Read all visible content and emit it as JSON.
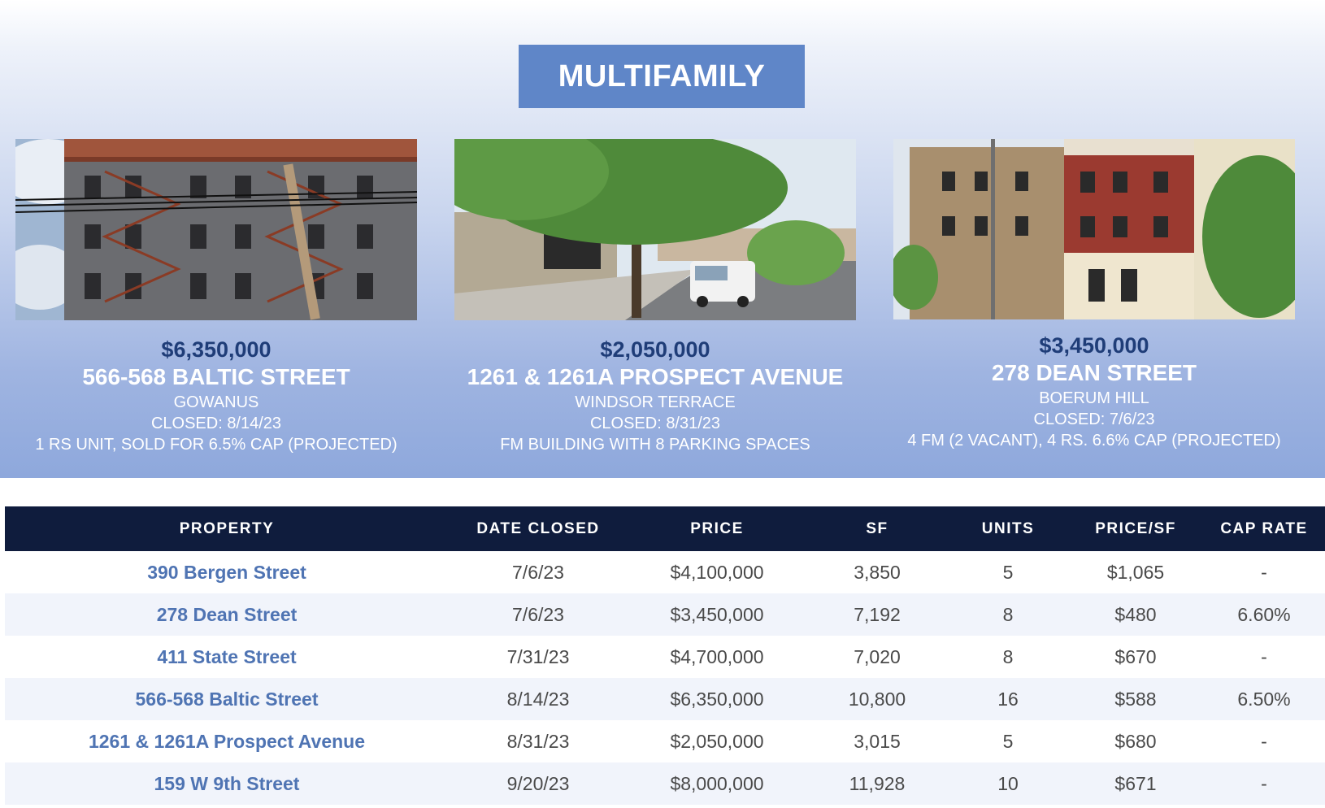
{
  "banner": "MULTIFAMILY",
  "cards": [
    {
      "price": "$6,350,000",
      "address": "566-568 BALTIC STREET",
      "neighborhood": "GOWANUS",
      "closed": "CLOSED: 8/14/23",
      "note": "1 RS UNIT, SOLD FOR 6.5% CAP (PROJECTED)"
    },
    {
      "price": "$2,050,000",
      "address": "1261 & 1261A PROSPECT AVENUE",
      "neighborhood": "WINDSOR TERRACE",
      "closed": "CLOSED: 8/31/23",
      "note": "FM BUILDING WITH 8 PARKING SPACES"
    },
    {
      "price": "$3,450,000",
      "address": "278 DEAN STREET",
      "neighborhood": "BOERUM HILL",
      "closed": "CLOSED: 7/6/23",
      "note": "4 FM (2 VACANT), 4 RS. 6.6% CAP (PROJECTED)"
    }
  ],
  "table": {
    "headers": [
      "PROPERTY",
      "DATE CLOSED",
      "PRICE",
      "SF",
      "UNITS",
      "PRICE/SF",
      "CAP RATE"
    ],
    "rows": [
      [
        "390 Bergen Street",
        "7/6/23",
        "$4,100,000",
        "3,850",
        "5",
        "$1,065",
        "-"
      ],
      [
        "278 Dean Street",
        "7/6/23",
        "$3,450,000",
        "7,192",
        "8",
        "$480",
        "6.60%"
      ],
      [
        "411 State Street",
        "7/31/23",
        "$4,700,000",
        "7,020",
        "8",
        "$670",
        "-"
      ],
      [
        "566-568 Baltic Street",
        "8/14/23",
        "$6,350,000",
        "10,800",
        "16",
        "$588",
        "6.50%"
      ],
      [
        "1261 & 1261A Prospect Avenue",
        "8/31/23",
        "$2,050,000",
        "3,015",
        "5",
        "$680",
        "-"
      ],
      [
        "159 W 9th Street",
        "9/20/23",
        "$8,000,000",
        "11,928",
        "10",
        "$671",
        "-"
      ]
    ]
  }
}
